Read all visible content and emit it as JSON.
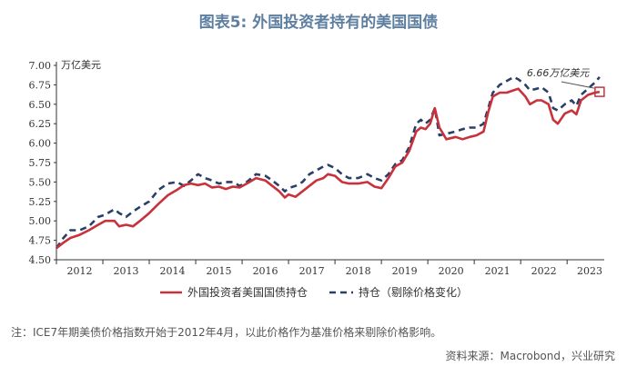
{
  "title": "图表5:  外国投资者持有的美国国债",
  "note": "注：ICE7年期美债价格指数开始于2012年4月，以此价格作为基准价格来剔除价格影响。",
  "source": "资料来源：Macrobond，兴业研究",
  "colors": {
    "solid": "#c8323c",
    "dashed": "#2a3f66",
    "title": "#5e7fa0"
  },
  "chart_data": {
    "type": "line",
    "unit_label": "万亿美元",
    "ylim": [
      4.5,
      7.0
    ],
    "yticks": [
      "4.50",
      "4.75",
      "5.00",
      "5.25",
      "5.50",
      "5.75",
      "6.00",
      "6.25",
      "6.50",
      "6.75",
      "7.00"
    ],
    "xlim": [
      2012.0,
      2023.8
    ],
    "xticks": [
      "2012",
      "2013",
      "2014",
      "2015",
      "2016",
      "2017",
      "2018",
      "2019",
      "2020",
      "2021",
      "2022",
      "2023"
    ],
    "annotation": {
      "text": "6.66万亿美元",
      "x": 2023.7,
      "y": 6.66
    },
    "series": [
      {
        "name": "外国投资者美国国债持仓",
        "style": "solid",
        "points": [
          [
            2012.0,
            4.65
          ],
          [
            2012.15,
            4.72
          ],
          [
            2012.3,
            4.78
          ],
          [
            2012.5,
            4.82
          ],
          [
            2012.7,
            4.88
          ],
          [
            2012.9,
            4.95
          ],
          [
            2013.05,
            5.0
          ],
          [
            2013.25,
            5.0
          ],
          [
            2013.35,
            4.93
          ],
          [
            2013.5,
            4.95
          ],
          [
            2013.65,
            4.93
          ],
          [
            2013.8,
            5.0
          ],
          [
            2014.0,
            5.1
          ],
          [
            2014.2,
            5.22
          ],
          [
            2014.4,
            5.33
          ],
          [
            2014.6,
            5.4
          ],
          [
            2014.75,
            5.46
          ],
          [
            2014.9,
            5.48
          ],
          [
            2015.05,
            5.46
          ],
          [
            2015.2,
            5.48
          ],
          [
            2015.35,
            5.43
          ],
          [
            2015.5,
            5.44
          ],
          [
            2015.65,
            5.41
          ],
          [
            2015.8,
            5.44
          ],
          [
            2015.95,
            5.43
          ],
          [
            2016.1,
            5.48
          ],
          [
            2016.3,
            5.55
          ],
          [
            2016.5,
            5.52
          ],
          [
            2016.65,
            5.45
          ],
          [
            2016.8,
            5.38
          ],
          [
            2016.92,
            5.3
          ],
          [
            2017.0,
            5.34
          ],
          [
            2017.15,
            5.31
          ],
          [
            2017.3,
            5.38
          ],
          [
            2017.45,
            5.45
          ],
          [
            2017.6,
            5.52
          ],
          [
            2017.75,
            5.55
          ],
          [
            2017.85,
            5.6
          ],
          [
            2018.0,
            5.58
          ],
          [
            2018.15,
            5.5
          ],
          [
            2018.3,
            5.48
          ],
          [
            2018.5,
            5.48
          ],
          [
            2018.7,
            5.5
          ],
          [
            2018.85,
            5.44
          ],
          [
            2019.0,
            5.42
          ],
          [
            2019.15,
            5.55
          ],
          [
            2019.3,
            5.7
          ],
          [
            2019.45,
            5.75
          ],
          [
            2019.6,
            5.9
          ],
          [
            2019.75,
            6.15
          ],
          [
            2019.85,
            6.2
          ],
          [
            2019.95,
            6.18
          ],
          [
            2020.05,
            6.25
          ],
          [
            2020.15,
            6.45
          ],
          [
            2020.25,
            6.2
          ],
          [
            2020.4,
            6.05
          ],
          [
            2020.6,
            6.08
          ],
          [
            2020.75,
            6.05
          ],
          [
            2020.9,
            6.08
          ],
          [
            2021.05,
            6.1
          ],
          [
            2021.2,
            6.15
          ],
          [
            2021.3,
            6.4
          ],
          [
            2021.4,
            6.6
          ],
          [
            2021.55,
            6.65
          ],
          [
            2021.7,
            6.65
          ],
          [
            2021.85,
            6.68
          ],
          [
            2021.95,
            6.7
          ],
          [
            2022.1,
            6.6
          ],
          [
            2022.2,
            6.5
          ],
          [
            2022.35,
            6.55
          ],
          [
            2022.45,
            6.55
          ],
          [
            2022.6,
            6.5
          ],
          [
            2022.7,
            6.3
          ],
          [
            2022.8,
            6.25
          ],
          [
            2022.95,
            6.38
          ],
          [
            2023.1,
            6.42
          ],
          [
            2023.2,
            6.37
          ],
          [
            2023.3,
            6.55
          ],
          [
            2023.45,
            6.62
          ],
          [
            2023.6,
            6.65
          ],
          [
            2023.7,
            6.66
          ]
        ]
      },
      {
        "name": "持仓（剔除价格变化）",
        "style": "dashed",
        "points": [
          [
            2012.0,
            4.65
          ],
          [
            2012.15,
            4.78
          ],
          [
            2012.3,
            4.88
          ],
          [
            2012.5,
            4.88
          ],
          [
            2012.7,
            4.93
          ],
          [
            2012.9,
            5.05
          ],
          [
            2013.05,
            5.08
          ],
          [
            2013.25,
            5.15
          ],
          [
            2013.35,
            5.1
          ],
          [
            2013.5,
            5.05
          ],
          [
            2013.65,
            5.12
          ],
          [
            2013.8,
            5.18
          ],
          [
            2014.0,
            5.25
          ],
          [
            2014.2,
            5.4
          ],
          [
            2014.4,
            5.48
          ],
          [
            2014.6,
            5.5
          ],
          [
            2014.75,
            5.45
          ],
          [
            2014.9,
            5.52
          ],
          [
            2015.05,
            5.6
          ],
          [
            2015.2,
            5.55
          ],
          [
            2015.35,
            5.52
          ],
          [
            2015.5,
            5.48
          ],
          [
            2015.65,
            5.5
          ],
          [
            2015.8,
            5.5
          ],
          [
            2015.95,
            5.45
          ],
          [
            2016.1,
            5.5
          ],
          [
            2016.3,
            5.6
          ],
          [
            2016.5,
            5.58
          ],
          [
            2016.65,
            5.52
          ],
          [
            2016.8,
            5.45
          ],
          [
            2016.92,
            5.38
          ],
          [
            2017.0,
            5.42
          ],
          [
            2017.15,
            5.45
          ],
          [
            2017.3,
            5.5
          ],
          [
            2017.45,
            5.6
          ],
          [
            2017.6,
            5.65
          ],
          [
            2017.75,
            5.7
          ],
          [
            2017.85,
            5.72
          ],
          [
            2018.0,
            5.68
          ],
          [
            2018.15,
            5.6
          ],
          [
            2018.3,
            5.55
          ],
          [
            2018.5,
            5.55
          ],
          [
            2018.7,
            5.6
          ],
          [
            2018.85,
            5.55
          ],
          [
            2019.0,
            5.52
          ],
          [
            2019.15,
            5.6
          ],
          [
            2019.3,
            5.73
          ],
          [
            2019.45,
            5.78
          ],
          [
            2019.6,
            5.95
          ],
          [
            2019.75,
            6.25
          ],
          [
            2019.85,
            6.3
          ],
          [
            2019.95,
            6.25
          ],
          [
            2020.05,
            6.3
          ],
          [
            2020.15,
            6.45
          ],
          [
            2020.25,
            6.1
          ],
          [
            2020.4,
            6.12
          ],
          [
            2020.6,
            6.15
          ],
          [
            2020.75,
            6.18
          ],
          [
            2020.9,
            6.2
          ],
          [
            2021.05,
            6.2
          ],
          [
            2021.2,
            6.25
          ],
          [
            2021.3,
            6.45
          ],
          [
            2021.4,
            6.65
          ],
          [
            2021.55,
            6.75
          ],
          [
            2021.7,
            6.8
          ],
          [
            2021.85,
            6.85
          ],
          [
            2021.95,
            6.82
          ],
          [
            2022.1,
            6.75
          ],
          [
            2022.2,
            6.68
          ],
          [
            2022.35,
            6.7
          ],
          [
            2022.45,
            6.72
          ],
          [
            2022.6,
            6.65
          ],
          [
            2022.7,
            6.45
          ],
          [
            2022.8,
            6.42
          ],
          [
            2022.95,
            6.5
          ],
          [
            2023.1,
            6.55
          ],
          [
            2023.2,
            6.48
          ],
          [
            2023.3,
            6.62
          ],
          [
            2023.45,
            6.7
          ],
          [
            2023.6,
            6.78
          ],
          [
            2023.7,
            6.85
          ]
        ]
      }
    ]
  }
}
